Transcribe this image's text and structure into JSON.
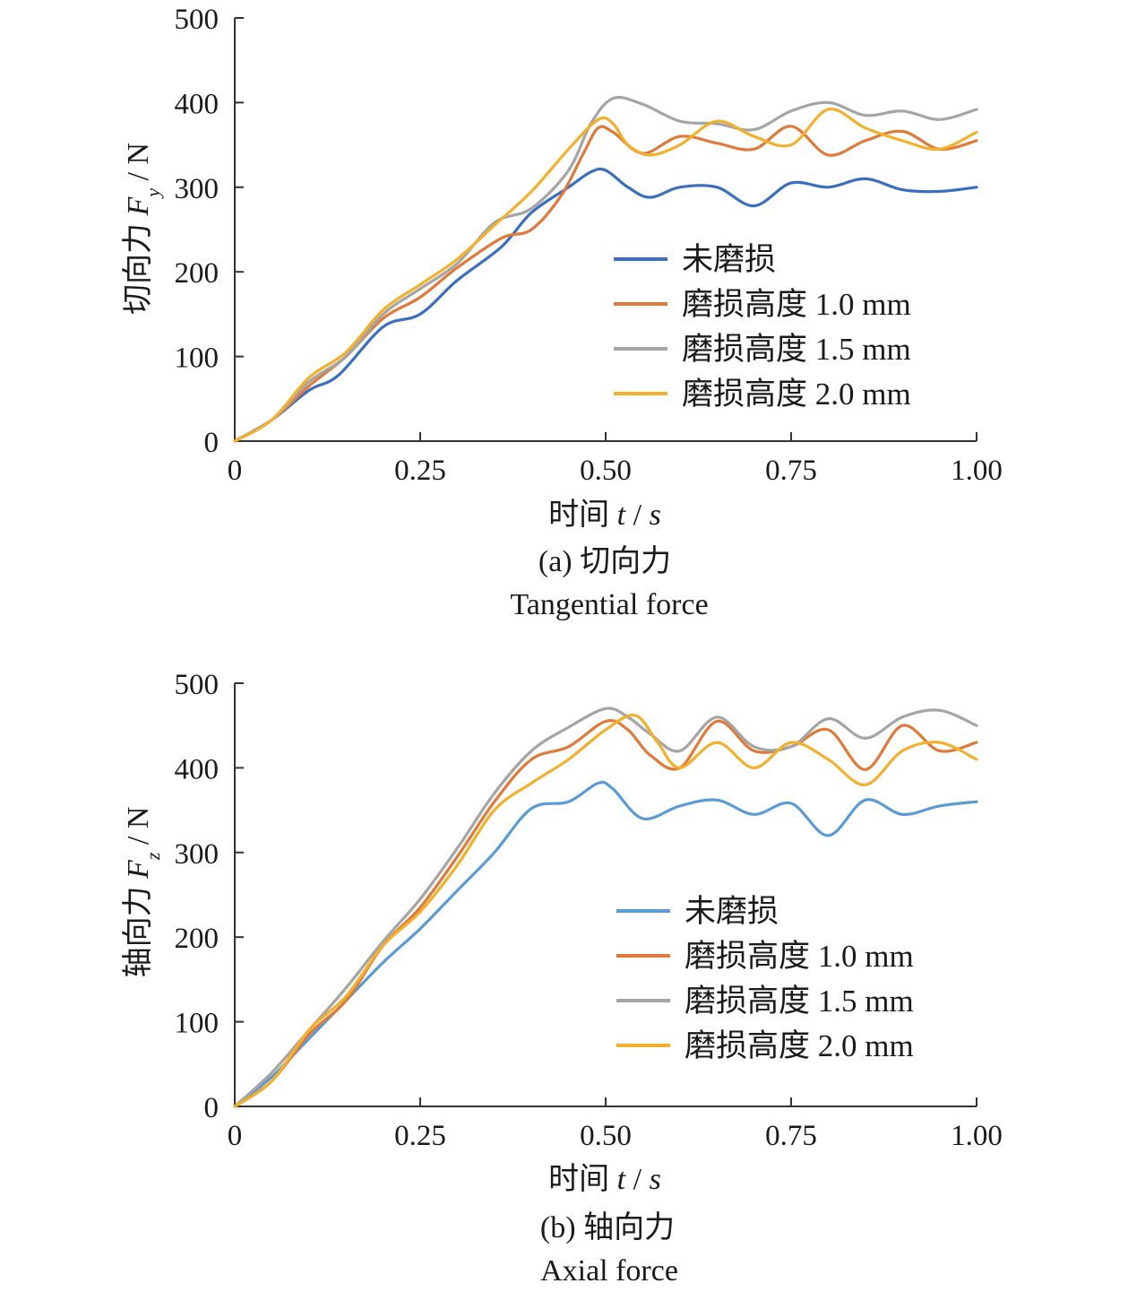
{
  "chart_data": [
    {
      "type": "line",
      "panel_id": "a",
      "caption": "(a) 切向力",
      "caption_en": "Tangential force",
      "xlabel": "时间 t / s",
      "ylabel": "切向力 F_y / N",
      "xlim": [
        0,
        1.0
      ],
      "ylim": [
        0,
        500
      ],
      "xticks": [
        "0",
        "0.25",
        "0.50",
        "0.75",
        "1.00"
      ],
      "yticks": [
        "0",
        "100",
        "200",
        "300",
        "400",
        "500"
      ],
      "grid": false,
      "legend_position": "center-right",
      "series": [
        {
          "name": "未磨损",
          "color": "#3a6fbf",
          "points": [
            [
              0,
              0
            ],
            [
              0.05,
              25
            ],
            [
              0.1,
              60
            ],
            [
              0.14,
              78
            ],
            [
              0.2,
              135
            ],
            [
              0.25,
              150
            ],
            [
              0.3,
              190
            ],
            [
              0.36,
              230
            ],
            [
              0.4,
              270
            ],
            [
              0.45,
              300
            ],
            [
              0.48,
              318
            ],
            [
              0.5,
              320
            ],
            [
              0.53,
              300
            ],
            [
              0.56,
              288
            ],
            [
              0.6,
              300
            ],
            [
              0.65,
              300
            ],
            [
              0.7,
              278
            ],
            [
              0.75,
              305
            ],
            [
              0.8,
              300
            ],
            [
              0.85,
              310
            ],
            [
              0.9,
              297
            ],
            [
              0.95,
              295
            ],
            [
              1.0,
              300
            ]
          ]
        },
        {
          "name": "磨损高度 1.0 mm",
          "color": "#e07a3a",
          "points": [
            [
              0,
              0
            ],
            [
              0.05,
              25
            ],
            [
              0.1,
              65
            ],
            [
              0.15,
              100
            ],
            [
              0.2,
              145
            ],
            [
              0.25,
              170
            ],
            [
              0.3,
              205
            ],
            [
              0.36,
              240
            ],
            [
              0.4,
              250
            ],
            [
              0.44,
              290
            ],
            [
              0.47,
              340
            ],
            [
              0.49,
              370
            ],
            [
              0.51,
              365
            ],
            [
              0.55,
              340
            ],
            [
              0.6,
              360
            ],
            [
              0.65,
              352
            ],
            [
              0.7,
              345
            ],
            [
              0.75,
              372
            ],
            [
              0.8,
              338
            ],
            [
              0.85,
              355
            ],
            [
              0.9,
              366
            ],
            [
              0.95,
              345
            ],
            [
              1.0,
              355
            ]
          ]
        },
        {
          "name": "磨损高度 1.5 mm",
          "color": "#a5a5a5",
          "points": [
            [
              0,
              0
            ],
            [
              0.05,
              25
            ],
            [
              0.1,
              70
            ],
            [
              0.15,
              100
            ],
            [
              0.2,
              150
            ],
            [
              0.25,
              180
            ],
            [
              0.3,
              210
            ],
            [
              0.35,
              258
            ],
            [
              0.4,
              275
            ],
            [
              0.45,
              320
            ],
            [
              0.48,
              375
            ],
            [
              0.51,
              405
            ],
            [
              0.55,
              398
            ],
            [
              0.6,
              378
            ],
            [
              0.65,
              375
            ],
            [
              0.7,
              368
            ],
            [
              0.75,
              390
            ],
            [
              0.8,
              400
            ],
            [
              0.85,
              385
            ],
            [
              0.9,
              390
            ],
            [
              0.95,
              380
            ],
            [
              1.0,
              392
            ]
          ]
        },
        {
          "name": "磨损高度 2.0 mm",
          "color": "#f3b02c",
          "points": [
            [
              0,
              0
            ],
            [
              0.05,
              25
            ],
            [
              0.1,
              75
            ],
            [
              0.15,
              105
            ],
            [
              0.2,
              155
            ],
            [
              0.25,
              185
            ],
            [
              0.3,
              215
            ],
            [
              0.35,
              255
            ],
            [
              0.4,
              295
            ],
            [
              0.45,
              345
            ],
            [
              0.49,
              380
            ],
            [
              0.51,
              375
            ],
            [
              0.53,
              350
            ],
            [
              0.56,
              338
            ],
            [
              0.6,
              350
            ],
            [
              0.65,
              378
            ],
            [
              0.7,
              360
            ],
            [
              0.75,
              350
            ],
            [
              0.8,
              392
            ],
            [
              0.85,
              370
            ],
            [
              0.9,
              355
            ],
            [
              0.95,
              345
            ],
            [
              1.0,
              365
            ]
          ]
        }
      ]
    },
    {
      "type": "line",
      "panel_id": "b",
      "caption": "(b) 轴向力",
      "caption_en": "Axial force",
      "xlabel": "时间 t / s",
      "ylabel": "轴向力 F_z / N",
      "xlim": [
        0,
        1.0
      ],
      "ylim": [
        0,
        500
      ],
      "xticks": [
        "0",
        "0.25",
        "0.50",
        "0.75",
        "1.00"
      ],
      "yticks": [
        "0",
        "100",
        "200",
        "300",
        "400",
        "500"
      ],
      "grid": false,
      "legend_position": "center-right",
      "series": [
        {
          "name": "未磨损",
          "color": "#5b9bd5",
          "points": [
            [
              0,
              0
            ],
            [
              0.05,
              35
            ],
            [
              0.1,
              80
            ],
            [
              0.15,
              125
            ],
            [
              0.2,
              170
            ],
            [
              0.25,
              210
            ],
            [
              0.3,
              255
            ],
            [
              0.35,
              300
            ],
            [
              0.4,
              352
            ],
            [
              0.45,
              360
            ],
            [
              0.49,
              382
            ],
            [
              0.51,
              375
            ],
            [
              0.55,
              340
            ],
            [
              0.6,
              355
            ],
            [
              0.65,
              362
            ],
            [
              0.7,
              345
            ],
            [
              0.75,
              358
            ],
            [
              0.8,
              320
            ],
            [
              0.85,
              362
            ],
            [
              0.9,
              345
            ],
            [
              0.95,
              355
            ],
            [
              1.0,
              360
            ]
          ]
        },
        {
          "name": "磨损高度 1.0 mm",
          "color": "#e07a3a",
          "points": [
            [
              0,
              0
            ],
            [
              0.05,
              30
            ],
            [
              0.1,
              85
            ],
            [
              0.15,
              125
            ],
            [
              0.2,
              190
            ],
            [
              0.25,
              235
            ],
            [
              0.3,
              295
            ],
            [
              0.35,
              360
            ],
            [
              0.4,
              410
            ],
            [
              0.45,
              425
            ],
            [
              0.5,
              455
            ],
            [
              0.53,
              445
            ],
            [
              0.56,
              415
            ],
            [
              0.6,
              400
            ],
            [
              0.65,
              455
            ],
            [
              0.7,
              420
            ],
            [
              0.75,
              425
            ],
            [
              0.8,
              445
            ],
            [
              0.85,
              398
            ],
            [
              0.9,
              450
            ],
            [
              0.95,
              420
            ],
            [
              1.0,
              430
            ]
          ]
        },
        {
          "name": "磨损高度 1.5 mm",
          "color": "#a5a5a5",
          "points": [
            [
              0,
              0
            ],
            [
              0.05,
              40
            ],
            [
              0.1,
              90
            ],
            [
              0.15,
              140
            ],
            [
              0.2,
              195
            ],
            [
              0.25,
              245
            ],
            [
              0.3,
              305
            ],
            [
              0.35,
              370
            ],
            [
              0.4,
              420
            ],
            [
              0.45,
              448
            ],
            [
              0.5,
              470
            ],
            [
              0.53,
              460
            ],
            [
              0.56,
              440
            ],
            [
              0.6,
              420
            ],
            [
              0.65,
              460
            ],
            [
              0.7,
              425
            ],
            [
              0.75,
              425
            ],
            [
              0.8,
              458
            ],
            [
              0.85,
              435
            ],
            [
              0.9,
              460
            ],
            [
              0.95,
              468
            ],
            [
              1.0,
              450
            ]
          ]
        },
        {
          "name": "磨损高度 2.0 mm",
          "color": "#f3b02c",
          "points": [
            [
              0,
              0
            ],
            [
              0.05,
              30
            ],
            [
              0.1,
              90
            ],
            [
              0.15,
              130
            ],
            [
              0.2,
              190
            ],
            [
              0.25,
              230
            ],
            [
              0.3,
              285
            ],
            [
              0.35,
              350
            ],
            [
              0.4,
              382
            ],
            [
              0.45,
              410
            ],
            [
              0.5,
              445
            ],
            [
              0.54,
              462
            ],
            [
              0.57,
              430
            ],
            [
              0.6,
              400
            ],
            [
              0.65,
              430
            ],
            [
              0.7,
              400
            ],
            [
              0.75,
              430
            ],
            [
              0.8,
              410
            ],
            [
              0.85,
              380
            ],
            [
              0.9,
              420
            ],
            [
              0.95,
              430
            ],
            [
              1.0,
              410
            ]
          ]
        }
      ]
    }
  ]
}
